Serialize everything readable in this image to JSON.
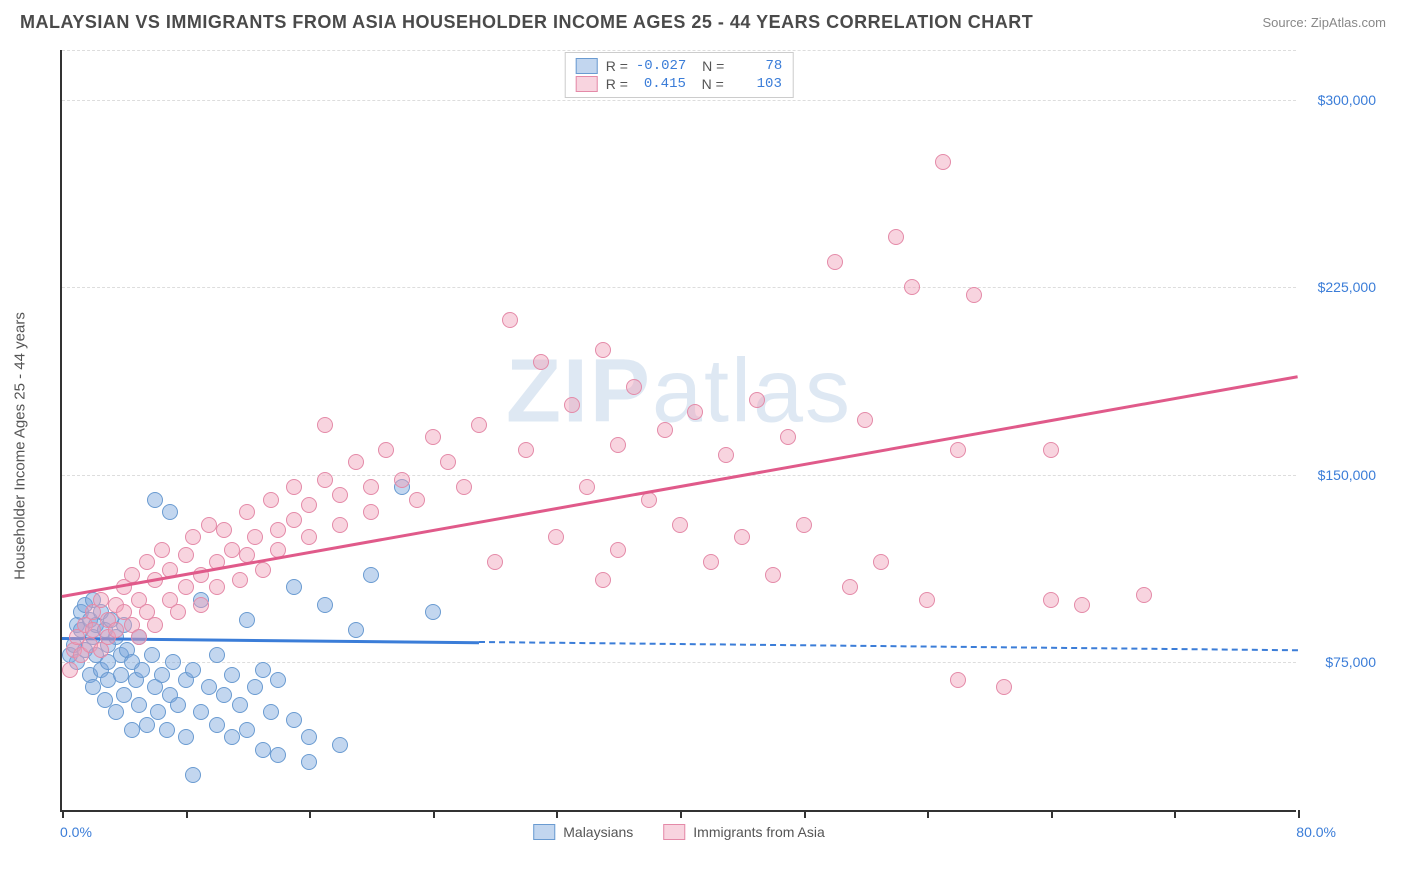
{
  "header": {
    "title": "MALAYSIAN VS IMMIGRANTS FROM ASIA HOUSEHOLDER INCOME AGES 25 - 44 YEARS CORRELATION CHART",
    "source": "Source: ZipAtlas.com"
  },
  "chart": {
    "type": "scatter",
    "ylabel": "Householder Income Ages 25 - 44 years",
    "xlim": [
      0,
      80
    ],
    "ylim": [
      15000,
      320000
    ],
    "xticks": [
      0,
      8,
      16,
      24,
      32,
      40,
      48,
      56,
      64,
      72,
      80
    ],
    "ytick_labels": [
      {
        "v": 75000,
        "t": "$75,000"
      },
      {
        "v": 150000,
        "t": "$150,000"
      },
      {
        "v": 225000,
        "t": "$225,000"
      },
      {
        "v": 300000,
        "t": "$300,000"
      }
    ],
    "xaxis_min_label": "0.0%",
    "xaxis_max_label": "80.0%",
    "grid_color": "#dddddd",
    "axis_color": "#333333",
    "background_color": "#ffffff",
    "watermark": "ZIPatlas",
    "marker_radius": 8,
    "series": [
      {
        "name": "Malaysians",
        "fill": "rgba(120,165,220,0.45)",
        "stroke": "#6a9bd1",
        "trend_color": "#3b7dd8",
        "R": "-0.027",
        "N": "78",
        "trend": {
          "x1": 0,
          "y1": 85000,
          "x2_solid": 27,
          "x2": 80,
          "y2": 80000
        },
        "points": [
          [
            0.5,
            78000
          ],
          [
            0.8,
            82000
          ],
          [
            1,
            90000
          ],
          [
            1,
            75000
          ],
          [
            1.2,
            88000
          ],
          [
            1.2,
            95000
          ],
          [
            1.5,
            80000
          ],
          [
            1.5,
            98000
          ],
          [
            1.8,
            92000
          ],
          [
            1.8,
            70000
          ],
          [
            2,
            85000
          ],
          [
            2,
            100000
          ],
          [
            2,
            65000
          ],
          [
            2.2,
            78000
          ],
          [
            2.2,
            90000
          ],
          [
            2.5,
            72000
          ],
          [
            2.5,
            95000
          ],
          [
            2.8,
            88000
          ],
          [
            2.8,
            60000
          ],
          [
            3,
            82000
          ],
          [
            3,
            75000
          ],
          [
            3,
            68000
          ],
          [
            3.2,
            92000
          ],
          [
            3.5,
            85000
          ],
          [
            3.5,
            55000
          ],
          [
            3.8,
            78000
          ],
          [
            3.8,
            70000
          ],
          [
            4,
            90000
          ],
          [
            4,
            62000
          ],
          [
            4.2,
            80000
          ],
          [
            4.5,
            48000
          ],
          [
            4.5,
            75000
          ],
          [
            4.8,
            68000
          ],
          [
            5,
            85000
          ],
          [
            5,
            58000
          ],
          [
            5.2,
            72000
          ],
          [
            5.5,
            50000
          ],
          [
            5.8,
            78000
          ],
          [
            6,
            65000
          ],
          [
            6,
            140000
          ],
          [
            6.2,
            55000
          ],
          [
            6.5,
            70000
          ],
          [
            6.8,
            48000
          ],
          [
            7,
            62000
          ],
          [
            7,
            135000
          ],
          [
            7.2,
            75000
          ],
          [
            7.5,
            58000
          ],
          [
            8,
            68000
          ],
          [
            8,
            45000
          ],
          [
            8.5,
            30000
          ],
          [
            8.5,
            72000
          ],
          [
            9,
            55000
          ],
          [
            9,
            100000
          ],
          [
            9.5,
            65000
          ],
          [
            10,
            50000
          ],
          [
            10,
            78000
          ],
          [
            10.5,
            62000
          ],
          [
            11,
            70000
          ],
          [
            11,
            45000
          ],
          [
            11.5,
            58000
          ],
          [
            12,
            48000
          ],
          [
            12,
            92000
          ],
          [
            12.5,
            65000
          ],
          [
            13,
            40000
          ],
          [
            13,
            72000
          ],
          [
            13.5,
            55000
          ],
          [
            14,
            38000
          ],
          [
            14,
            68000
          ],
          [
            15,
            52000
          ],
          [
            15,
            105000
          ],
          [
            16,
            45000
          ],
          [
            16,
            35000
          ],
          [
            17,
            98000
          ],
          [
            18,
            42000
          ],
          [
            19,
            88000
          ],
          [
            20,
            110000
          ],
          [
            22,
            145000
          ],
          [
            24,
            95000
          ]
        ]
      },
      {
        "name": "Immigrants from Asia",
        "fill": "rgba(240,160,185,0.45)",
        "stroke": "#e48aa8",
        "trend_color": "#e05a8a",
        "R": "0.415",
        "N": "103",
        "trend": {
          "x1": 0,
          "y1": 102000,
          "x2_solid": 80,
          "x2": 80,
          "y2": 190000
        },
        "points": [
          [
            0.5,
            72000
          ],
          [
            0.8,
            80000
          ],
          [
            1,
            85000
          ],
          [
            1.2,
            78000
          ],
          [
            1.5,
            90000
          ],
          [
            1.8,
            82000
          ],
          [
            2,
            88000
          ],
          [
            2,
            95000
          ],
          [
            2.5,
            80000
          ],
          [
            2.5,
            100000
          ],
          [
            3,
            92000
          ],
          [
            3,
            85000
          ],
          [
            3.5,
            98000
          ],
          [
            3.5,
            88000
          ],
          [
            4,
            105000
          ],
          [
            4,
            95000
          ],
          [
            4.5,
            90000
          ],
          [
            4.5,
            110000
          ],
          [
            5,
            100000
          ],
          [
            5,
            85000
          ],
          [
            5.5,
            115000
          ],
          [
            5.5,
            95000
          ],
          [
            6,
            108000
          ],
          [
            6,
            90000
          ],
          [
            6.5,
            120000
          ],
          [
            7,
            100000
          ],
          [
            7,
            112000
          ],
          [
            7.5,
            95000
          ],
          [
            8,
            118000
          ],
          [
            8,
            105000
          ],
          [
            8.5,
            125000
          ],
          [
            9,
            110000
          ],
          [
            9,
            98000
          ],
          [
            9.5,
            130000
          ],
          [
            10,
            115000
          ],
          [
            10,
            105000
          ],
          [
            10.5,
            128000
          ],
          [
            11,
            120000
          ],
          [
            11.5,
            108000
          ],
          [
            12,
            135000
          ],
          [
            12,
            118000
          ],
          [
            12.5,
            125000
          ],
          [
            13,
            112000
          ],
          [
            13.5,
            140000
          ],
          [
            14,
            128000
          ],
          [
            14,
            120000
          ],
          [
            15,
            145000
          ],
          [
            15,
            132000
          ],
          [
            16,
            138000
          ],
          [
            16,
            125000
          ],
          [
            17,
            148000
          ],
          [
            17,
            170000
          ],
          [
            18,
            142000
          ],
          [
            18,
            130000
          ],
          [
            19,
            155000
          ],
          [
            20,
            145000
          ],
          [
            20,
            135000
          ],
          [
            21,
            160000
          ],
          [
            22,
            148000
          ],
          [
            23,
            140000
          ],
          [
            24,
            165000
          ],
          [
            25,
            155000
          ],
          [
            26,
            145000
          ],
          [
            27,
            170000
          ],
          [
            28,
            115000
          ],
          [
            29,
            212000
          ],
          [
            30,
            160000
          ],
          [
            31,
            195000
          ],
          [
            32,
            125000
          ],
          [
            33,
            178000
          ],
          [
            34,
            145000
          ],
          [
            35,
            200000
          ],
          [
            35,
            108000
          ],
          [
            36,
            120000
          ],
          [
            37,
            185000
          ],
          [
            38,
            140000
          ],
          [
            39,
            168000
          ],
          [
            40,
            130000
          ],
          [
            41,
            175000
          ],
          [
            42,
            115000
          ],
          [
            43,
            158000
          ],
          [
            44,
            125000
          ],
          [
            45,
            180000
          ],
          [
            46,
            110000
          ],
          [
            47,
            165000
          ],
          [
            48,
            130000
          ],
          [
            50,
            235000
          ],
          [
            51,
            105000
          ],
          [
            52,
            172000
          ],
          [
            53,
            115000
          ],
          [
            54,
            245000
          ],
          [
            55,
            225000
          ],
          [
            56,
            100000
          ],
          [
            57,
            275000
          ],
          [
            58,
            160000
          ],
          [
            59,
            222000
          ],
          [
            58,
            68000
          ],
          [
            61,
            65000
          ],
          [
            64,
            100000
          ],
          [
            66,
            98000
          ],
          [
            70,
            102000
          ],
          [
            64,
            160000
          ],
          [
            36,
            162000
          ]
        ]
      }
    ],
    "bottom_legend": [
      {
        "label": "Malaysians",
        "fill": "rgba(120,165,220,0.45)",
        "stroke": "#6a9bd1"
      },
      {
        "label": "Immigrants from Asia",
        "fill": "rgba(240,160,185,0.45)",
        "stroke": "#e48aa8"
      }
    ]
  }
}
